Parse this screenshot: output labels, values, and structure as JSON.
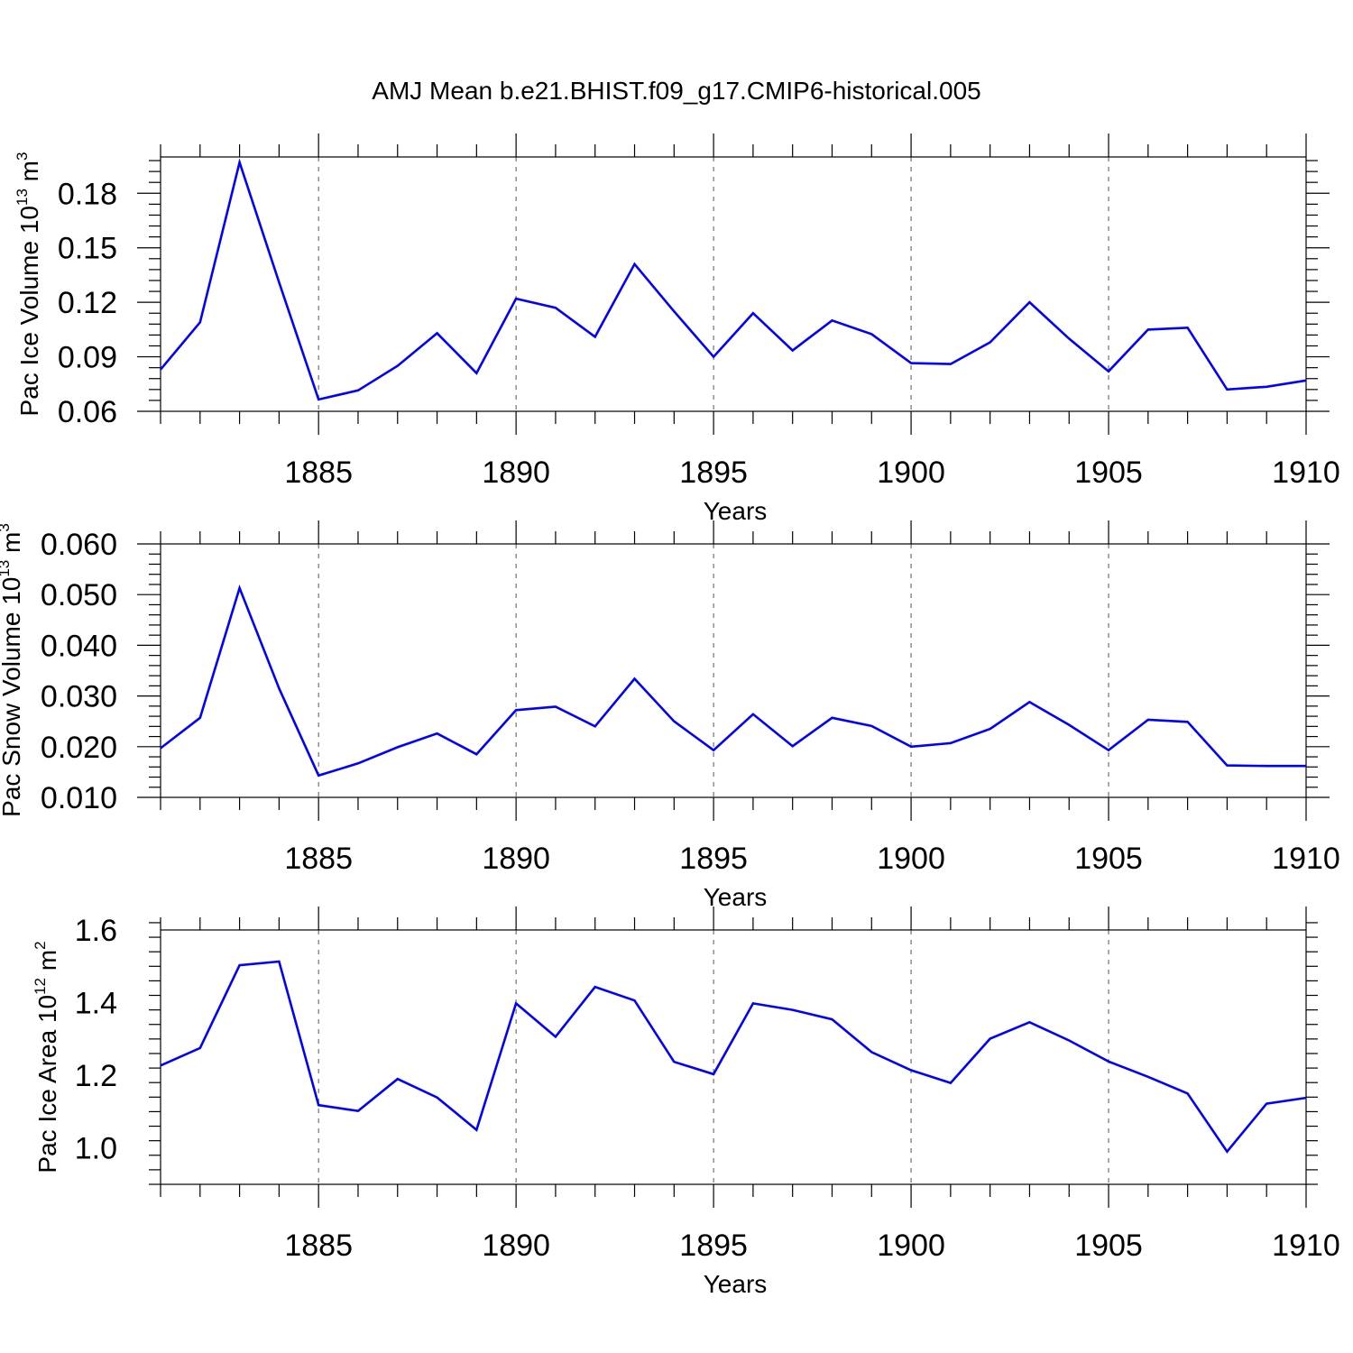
{
  "chart_data": [
    {
      "type": "line",
      "title": "AMJ Mean b.e21.BHIST.f09_g17.CMIP6-historical.005",
      "xlabel": "Years",
      "ylabel": "Pac Ice Volume 10",
      "ylabel_exp": "13",
      "ylabel_unit": " m",
      "ylabel_unit_exp": "3",
      "xlim": [
        1881,
        1910
      ],
      "ylim": [
        0.06,
        0.2
      ],
      "xticks": [
        1885,
        1890,
        1895,
        1900,
        1905,
        1910
      ],
      "xtick_labels": [
        "1885",
        "1890",
        "1895",
        "1900",
        "1905",
        "1910"
      ],
      "yticks": [
        0.06,
        0.09,
        0.12,
        0.15,
        0.18
      ],
      "ytick_labels": [
        "0.06",
        "0.09",
        "0.12",
        "0.15",
        "0.18"
      ],
      "grid": "vertical dashed at major x ticks",
      "x": [
        1881,
        1882,
        1883,
        1884,
        1885,
        1886,
        1887,
        1888,
        1889,
        1890,
        1891,
        1892,
        1893,
        1894,
        1895,
        1896,
        1897,
        1898,
        1899,
        1900,
        1901,
        1902,
        1903,
        1904,
        1905,
        1906,
        1907,
        1908,
        1909,
        1910
      ],
      "values": [
        0.083,
        0.109,
        0.197,
        0.131,
        0.0665,
        0.0715,
        0.085,
        0.103,
        0.081,
        0.122,
        0.117,
        0.101,
        0.141,
        0.115,
        0.09,
        0.114,
        0.0935,
        0.11,
        0.1025,
        0.0865,
        0.086,
        0.098,
        0.12,
        0.1,
        0.082,
        0.105,
        0.106,
        0.072,
        0.0735,
        0.077
      ],
      "color": "#0000ff"
    },
    {
      "type": "line",
      "xlabel": "Years",
      "ylabel": "Pac Snow Volume 10",
      "ylabel_exp": "13",
      "ylabel_unit": " m",
      "ylabel_unit_exp": "3",
      "xlim": [
        1881,
        1910
      ],
      "ylim": [
        0.01,
        0.06
      ],
      "xticks": [
        1885,
        1890,
        1895,
        1900,
        1905,
        1910
      ],
      "xtick_labels": [
        "1885",
        "1890",
        "1895",
        "1900",
        "1905",
        "1910"
      ],
      "yticks": [
        0.01,
        0.02,
        0.03,
        0.04,
        0.05,
        0.06
      ],
      "ytick_labels": [
        "0.010",
        "0.020",
        "0.030",
        "0.040",
        "0.050",
        "0.060"
      ],
      "grid": "vertical dashed at major x ticks",
      "x": [
        1881,
        1882,
        1883,
        1884,
        1885,
        1886,
        1887,
        1888,
        1889,
        1890,
        1891,
        1892,
        1893,
        1894,
        1895,
        1896,
        1897,
        1898,
        1899,
        1900,
        1901,
        1902,
        1903,
        1904,
        1905,
        1906,
        1907,
        1908,
        1909,
        1910
      ],
      "values": [
        0.0197,
        0.0257,
        0.0513,
        0.0315,
        0.0143,
        0.0167,
        0.0199,
        0.0226,
        0.0185,
        0.0272,
        0.0279,
        0.024,
        0.0334,
        0.025,
        0.0193,
        0.0264,
        0.0201,
        0.0257,
        0.0241,
        0.02,
        0.0207,
        0.0235,
        0.0288,
        0.0243,
        0.0193,
        0.0253,
        0.0249,
        0.0163,
        0.0162,
        0.0162
      ],
      "color": "#0000ff"
    },
    {
      "type": "line",
      "xlabel": "Years",
      "ylabel": "Pac Ice Area 10",
      "ylabel_exp": "12",
      "ylabel_unit": " m",
      "ylabel_unit_exp": "2",
      "xlim": [
        1881,
        1910
      ],
      "ylim": [
        0.9,
        1.6
      ],
      "xticks": [
        1885,
        1890,
        1895,
        1900,
        1905,
        1910
      ],
      "xtick_labels": [
        "1885",
        "1890",
        "1895",
        "1900",
        "1905",
        "1910"
      ],
      "yticks": [
        1.0,
        1.2,
        1.4,
        1.6
      ],
      "ytick_labels": [
        "1.0",
        "1.2",
        "1.4",
        "1.6"
      ],
      "grid": "vertical dashed at major x ticks",
      "x": [
        1881,
        1882,
        1883,
        1884,
        1885,
        1886,
        1887,
        1888,
        1889,
        1890,
        1891,
        1892,
        1893,
        1894,
        1895,
        1896,
        1897,
        1898,
        1899,
        1900,
        1901,
        1902,
        1903,
        1904,
        1905,
        1906,
        1907,
        1908,
        1909,
        1910
      ],
      "values": [
        1.227,
        1.275,
        1.503,
        1.513,
        1.118,
        1.102,
        1.19,
        1.139,
        1.05,
        1.398,
        1.306,
        1.443,
        1.406,
        1.237,
        1.203,
        1.398,
        1.38,
        1.354,
        1.264,
        1.214,
        1.179,
        1.301,
        1.346,
        1.296,
        1.238,
        1.196,
        1.15,
        0.99,
        1.122,
        1.138
      ],
      "color": "#0000ff"
    }
  ]
}
